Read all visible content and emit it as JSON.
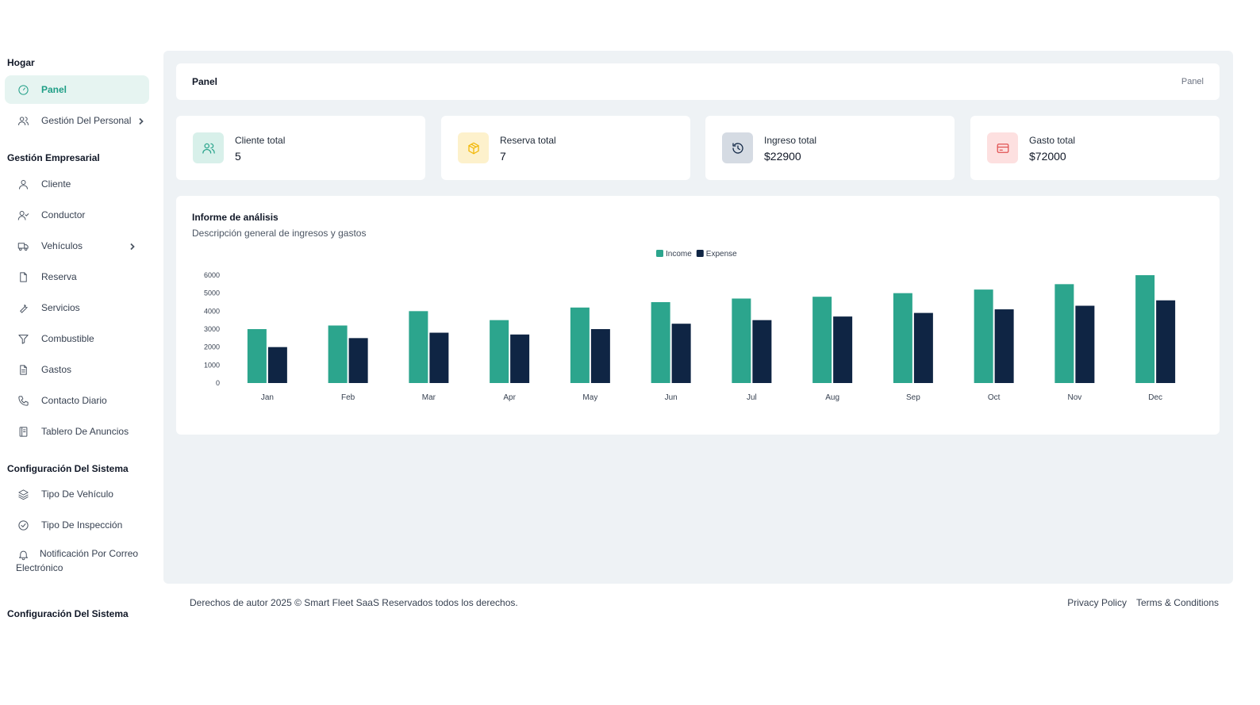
{
  "sidebar": {
    "sections": [
      {
        "title": "Hogar"
      },
      {
        "title": "Gestión Empresarial"
      },
      {
        "title": "Configuración Del Sistema"
      },
      {
        "title": "Configuración Del Sistema"
      }
    ],
    "items": [
      {
        "label": "Panel",
        "icon": "gauge-icon"
      },
      {
        "label": "Gestión Del Personal",
        "icon": "users-icon"
      },
      {
        "label": "Cliente",
        "icon": "user-icon"
      },
      {
        "label": "Conductor",
        "icon": "user-check-icon"
      },
      {
        "label": "Vehículos",
        "icon": "truck-icon"
      },
      {
        "label": "Reserva",
        "icon": "file-icon"
      },
      {
        "label": "Servicios",
        "icon": "wrench-icon"
      },
      {
        "label": "Combustible",
        "icon": "filter-icon"
      },
      {
        "label": "Gastos",
        "icon": "file-text-icon"
      },
      {
        "label": "Contacto Diario",
        "icon": "phone-icon"
      },
      {
        "label": "Tablero De Anuncios",
        "icon": "book-icon"
      },
      {
        "label": "Tipo De Vehículo",
        "icon": "layers-icon"
      },
      {
        "label": "Tipo De Inspección",
        "icon": "check-circle-icon"
      },
      {
        "label": "Notificación Por Correo Electrónico",
        "icon": "bell-icon"
      }
    ]
  },
  "header": {
    "title": "Panel",
    "breadcrumb": "Panel"
  },
  "stats": [
    {
      "label": "Cliente total",
      "value": "5",
      "icon": "users-icon",
      "bg": "#d8f0ea",
      "color": "#2ca58d"
    },
    {
      "label": "Reserva total",
      "value": "7",
      "icon": "box-icon",
      "bg": "#fdf1cc",
      "color": "#f2b705"
    },
    {
      "label": "Ingreso total",
      "value": "$22900",
      "icon": "history-icon",
      "bg": "#d5dbe3",
      "color": "#0f2544"
    },
    {
      "label": "Gasto total",
      "value": "$72000",
      "icon": "credit-card-icon",
      "bg": "#fde0e0",
      "color": "#e05252"
    }
  ],
  "chart_title": "Informe de análisis",
  "chart_subtitle": "Descripción general de ingresos y gastos",
  "chart_data": {
    "type": "bar",
    "title": "Informe de análisis",
    "subtitle": "Descripción general de ingresos y gastos",
    "categories": [
      "Jan",
      "Feb",
      "Mar",
      "Apr",
      "May",
      "Jun",
      "Jul",
      "Aug",
      "Sep",
      "Oct",
      "Nov",
      "Dec"
    ],
    "series": [
      {
        "name": "Income",
        "color": "#2ca58d",
        "values": [
          3000,
          3200,
          4000,
          3500,
          4200,
          4500,
          4700,
          4800,
          5000,
          5200,
          5500,
          6000
        ]
      },
      {
        "name": "Expense",
        "color": "#0f2544",
        "values": [
          2000,
          2500,
          2800,
          2700,
          3000,
          3300,
          3500,
          3700,
          3900,
          4100,
          4300,
          4600
        ]
      }
    ],
    "yticks": [
      0,
      1000,
      2000,
      3000,
      4000,
      5000,
      6000
    ],
    "ylim": [
      0,
      6000
    ],
    "legend": "top-center",
    "grid": false
  },
  "footer": {
    "copyright": "Derechos de autor 2025 © Smart Fleet SaaS Reservados todos los derechos.",
    "privacy": "Privacy Policy",
    "terms": "Terms & Conditions"
  }
}
